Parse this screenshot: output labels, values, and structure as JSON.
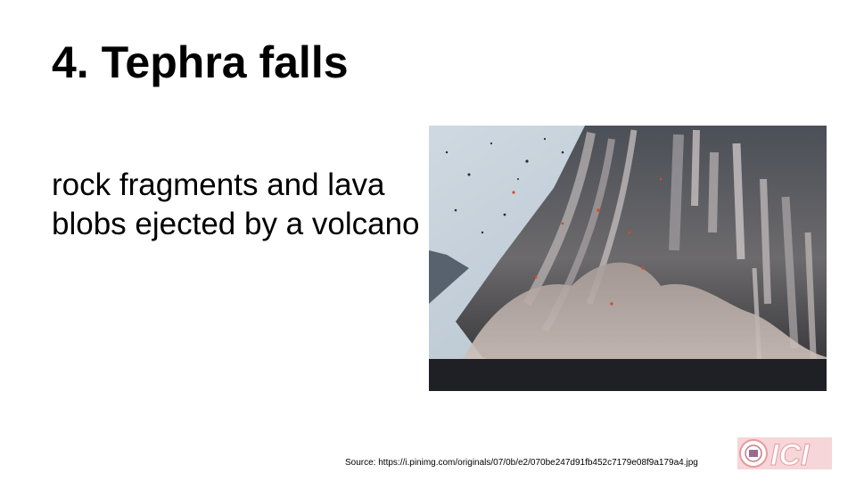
{
  "slide": {
    "title": "4. Tephra falls",
    "body": "rock fragments and lava blobs ejected by a volcano",
    "source": "Source: https://i.pinimg.com/originals/07/0b/e2/070be247d91fb452c7179e08f9a179a4.jpg"
  },
  "image": {
    "subject": "volcanic eruption with tephra fall"
  },
  "logo": {
    "text": "ICI",
    "color": "#e89a9f"
  }
}
